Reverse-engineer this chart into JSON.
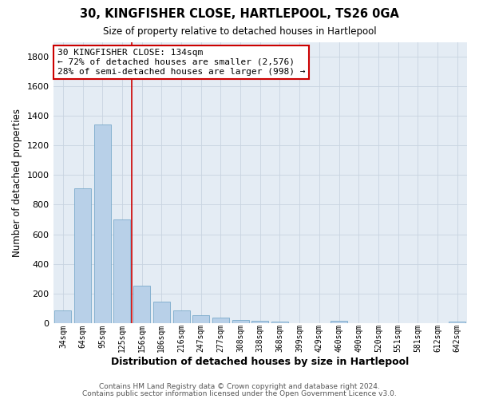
{
  "title": "30, KINGFISHER CLOSE, HARTLEPOOL, TS26 0GA",
  "subtitle": "Size of property relative to detached houses in Hartlepool",
  "xlabel": "Distribution of detached houses by size in Hartlepool",
  "ylabel": "Number of detached properties",
  "categories": [
    "34sqm",
    "64sqm",
    "95sqm",
    "125sqm",
    "156sqm",
    "186sqm",
    "216sqm",
    "247sqm",
    "277sqm",
    "308sqm",
    "338sqm",
    "368sqm",
    "399sqm",
    "429sqm",
    "460sqm",
    "490sqm",
    "520sqm",
    "551sqm",
    "581sqm",
    "612sqm",
    "642sqm"
  ],
  "values": [
    85,
    910,
    1340,
    700,
    250,
    145,
    85,
    55,
    35,
    20,
    15,
    10,
    0,
    0,
    15,
    0,
    0,
    0,
    0,
    0,
    10
  ],
  "bar_color": "#b8d0e8",
  "bar_edge_color": "#7aaacb",
  "vline_color": "#cc0000",
  "annotation_text": "30 KINGFISHER CLOSE: 134sqm\n← 72% of detached houses are smaller (2,576)\n28% of semi-detached houses are larger (998) →",
  "annotation_box_color": "#ffffff",
  "annotation_box_edge": "#cc0000",
  "ylim": [
    0,
    1900
  ],
  "yticks": [
    0,
    200,
    400,
    600,
    800,
    1000,
    1200,
    1400,
    1600,
    1800
  ],
  "grid_color": "#c8d4e0",
  "bg_color": "#ffffff",
  "ax_bg_color": "#e4ecf4",
  "footer1": "Contains HM Land Registry data © Crown copyright and database right 2024.",
  "footer2": "Contains public sector information licensed under the Open Government Licence v3.0."
}
